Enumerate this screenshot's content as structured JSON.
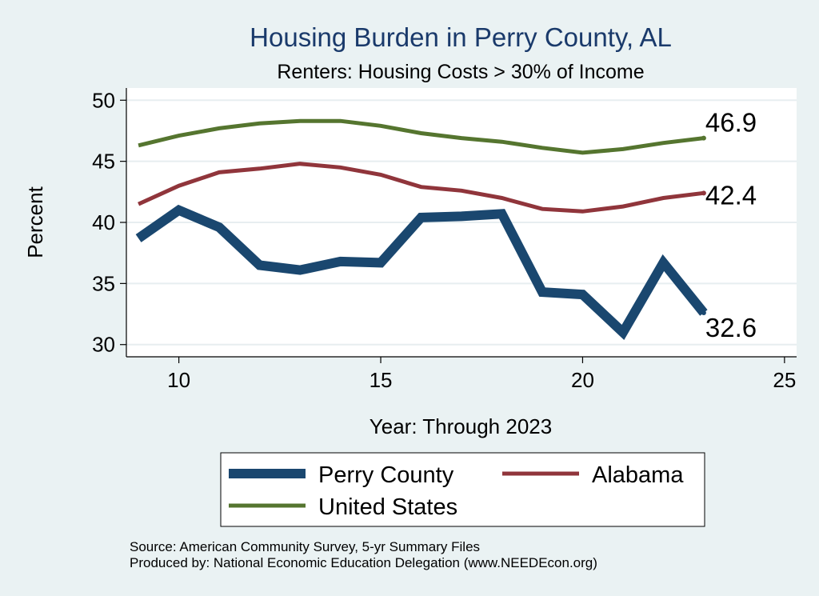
{
  "chart_data": {
    "type": "line",
    "title": "Housing Burden in Perry County, AL",
    "subtitle": "Renters: Housing Costs > 30% of Income",
    "xlabel": "Year: Through 2023",
    "ylabel": "Percent",
    "xlim": [
      8.7,
      25.3
    ],
    "ylim": [
      29.0,
      51.0
    ],
    "xticks": [
      10,
      15,
      20,
      25
    ],
    "yticks": [
      30,
      35,
      40,
      45,
      50
    ],
    "grid": true,
    "legend_position": "bottom",
    "x": [
      9,
      10,
      11,
      12,
      13,
      14,
      15,
      16,
      17,
      18,
      19,
      20,
      21,
      22,
      23
    ],
    "series": [
      {
        "name": "Perry County",
        "color": "#1a476f",
        "width": "thick",
        "values": [
          38.7,
          41.0,
          39.6,
          36.5,
          36.1,
          36.8,
          36.7,
          40.4,
          40.5,
          40.7,
          34.3,
          34.1,
          31.0,
          36.7,
          32.6
        ],
        "end_label": "32.6"
      },
      {
        "name": "Alabama",
        "color": "#90353b",
        "width": "thin",
        "values": [
          41.5,
          43.0,
          44.1,
          44.4,
          44.8,
          44.5,
          43.9,
          42.9,
          42.6,
          42.0,
          41.1,
          40.9,
          41.3,
          42.0,
          42.4
        ],
        "end_label": "42.4"
      },
      {
        "name": "United States",
        "color": "#55752f",
        "width": "thin",
        "values": [
          46.3,
          47.1,
          47.7,
          48.1,
          48.3,
          48.3,
          47.9,
          47.3,
          46.9,
          46.6,
          46.1,
          45.7,
          46.0,
          46.5,
          46.9
        ],
        "end_label": "46.9"
      }
    ],
    "source_lines": [
      "Source: American Community Survey, 5-yr Summary Files",
      "Produced by: National Economic Education Delegation (www.NEEDEcon.org)"
    ]
  }
}
